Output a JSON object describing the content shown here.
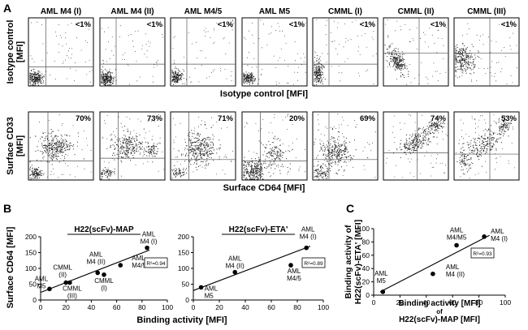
{
  "panel_a": {
    "letter": "A",
    "top_row": {
      "ylabel_lines": [
        "Isotype control",
        "[MFI]"
      ],
      "xlabel": "Isotype control [MFI]",
      "percents": [
        "<1%",
        "<1%",
        "<1%",
        "<1%",
        "<1%",
        "<1%",
        "<1%"
      ]
    },
    "bottom_row": {
      "ylabel_lines": [
        "Surface CD33",
        "[MFI]"
      ],
      "xlabel": "Surface CD64 [MFI]",
      "percents": [
        "70%",
        "73%",
        "71%",
        "20%",
        "69%",
        "74%",
        "53%"
      ]
    },
    "column_titles": [
      "AML M4 (I)",
      "AML M4 (II)",
      "AML M4/5",
      "AML M5",
      "CMML (I)",
      "CMML (II)",
      "CMML (III)"
    ]
  },
  "panel_b": {
    "letter": "B",
    "ylabel_lines": [
      "Surface CD64 [MFI]"
    ],
    "xlabel": "Binding activity [MFI]"
  },
  "panel_c": {
    "letter": "C",
    "ylabel_lines": [
      "Binding activity of",
      "H22(scFv)-ETA' [MFI]"
    ],
    "xlabel_lines": [
      "Binding activity [MFI]",
      "of",
      "H22(scFv)-MAP [MFI]"
    ]
  },
  "chart_data": [
    {
      "id": "b1",
      "type": "scatter",
      "title": "H22(scFv)-MAP",
      "xlim": [
        0,
        100
      ],
      "ylim": [
        0,
        200
      ],
      "xticks": [
        0,
        20,
        40,
        60,
        80,
        100
      ],
      "yticks": [
        0,
        50,
        100,
        150,
        200
      ],
      "x": [
        7,
        20,
        23,
        45,
        50,
        63,
        84
      ],
      "y": [
        35,
        55,
        55,
        86,
        80,
        110,
        165
      ],
      "point_labels": [
        [
          "AML",
          "M5"
        ],
        [
          "CMML",
          "(II)"
        ],
        [
          "CMML",
          "(III)"
        ],
        [
          "AML",
          "M4 (II)"
        ],
        [
          "CMML",
          "(I)"
        ],
        [
          "AML",
          "M4/5"
        ],
        [
          "AML",
          "M4 (I)"
        ]
      ],
      "fit": {
        "x": [
          0,
          86
        ],
        "y": [
          24,
          158
        ]
      },
      "r2": "R²=0.94"
    },
    {
      "id": "b2",
      "type": "scatter",
      "title": "H22(scFv)-ETA'",
      "xlim": [
        0,
        100
      ],
      "ylim": [
        0,
        200
      ],
      "xticks": [
        0,
        20,
        40,
        60,
        80,
        100
      ],
      "yticks": [
        0,
        50,
        100,
        150,
        200
      ],
      "x": [
        6,
        32,
        75,
        87
      ],
      "y": [
        40,
        88,
        110,
        165
      ],
      "point_labels": [
        [
          "AML",
          "M5"
        ],
        [
          "AML",
          "M4 (II)"
        ],
        [
          "AML",
          "M4/5"
        ],
        [
          "AML",
          "M4 (I)"
        ]
      ],
      "fit": {
        "x": [
          0,
          90
        ],
        "y": [
          30,
          170
        ]
      },
      "r2": "R²=0.89"
    },
    {
      "id": "c",
      "type": "scatter",
      "title": "",
      "xlim": [
        0,
        100
      ],
      "ylim": [
        0,
        100
      ],
      "xticks": [
        0,
        20,
        40,
        60,
        80,
        100
      ],
      "yticks": [
        0,
        20,
        40,
        60,
        80,
        100
      ],
      "x": [
        7,
        45,
        63,
        84
      ],
      "y": [
        5,
        32,
        75,
        88
      ],
      "point_labels": [
        [
          "AML",
          "M5"
        ],
        [
          "AML",
          "M4 (II)"
        ],
        [
          "AML",
          "M4/M5"
        ],
        [
          "AML",
          "M4 (I)"
        ]
      ],
      "fit": {
        "x": [
          5,
          88
        ],
        "y": [
          5,
          90
        ]
      },
      "r2": "R²=0.93"
    }
  ]
}
